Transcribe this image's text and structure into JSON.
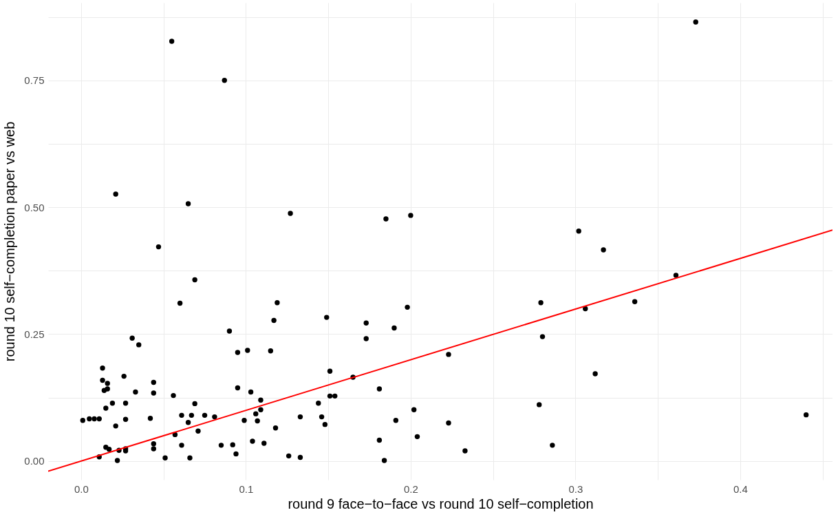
{
  "chart_data": {
    "type": "scatter",
    "xlabel": "round 9 face−to−face vs round 10 self−completion",
    "ylabel": "round 10 self−completion paper vs web",
    "xlim": [
      -0.02,
      0.456
    ],
    "ylim": [
      -0.037,
      0.903
    ],
    "xticks": [
      {
        "value": 0,
        "label": "0.0"
      },
      {
        "value": 0.05,
        "label": null
      },
      {
        "value": 0.1,
        "label": "0.1"
      },
      {
        "value": 0.15,
        "label": null
      },
      {
        "value": 0.2,
        "label": "0.2"
      },
      {
        "value": 0.25,
        "label": null
      },
      {
        "value": 0.3,
        "label": "0.3"
      },
      {
        "value": 0.35,
        "label": null
      },
      {
        "value": 0.4,
        "label": "0.4"
      },
      {
        "value": 0.45,
        "label": null
      }
    ],
    "yticks": [
      {
        "value": 0,
        "label": "0.00"
      },
      {
        "value": 0.125,
        "label": null
      },
      {
        "value": 0.25,
        "label": "0.25"
      },
      {
        "value": 0.375,
        "label": null
      },
      {
        "value": 0.5,
        "label": "0.50"
      },
      {
        "value": 0.625,
        "label": null
      },
      {
        "value": 0.75,
        "label": "0.75"
      },
      {
        "value": 0.875,
        "label": null
      }
    ],
    "grid": true,
    "series": [
      {
        "marker": "circle",
        "color": "#000000",
        "x": [
          0.001,
          0.005,
          0.008,
          0.011,
          0.011,
          0.013,
          0.013,
          0.014,
          0.015,
          0.015,
          0.016,
          0.016,
          0.017,
          0.019,
          0.021,
          0.021,
          0.022,
          0.023,
          0.026,
          0.027,
          0.027,
          0.027,
          0.027,
          0.031,
          0.033,
          0.035,
          0.042,
          0.044,
          0.044,
          0.044,
          0.044,
          0.047,
          0.051,
          0.055,
          0.056,
          0.057,
          0.06,
          0.061,
          0.061,
          0.065,
          0.065,
          0.066,
          0.067,
          0.069,
          0.069,
          0.071,
          0.075,
          0.081,
          0.085,
          0.087,
          0.09,
          0.092,
          0.094,
          0.095,
          0.095,
          0.099,
          0.101,
          0.103,
          0.104,
          0.106,
          0.107,
          0.109,
          0.109,
          0.111,
          0.115,
          0.117,
          0.118,
          0.119,
          0.126,
          0.127,
          0.133,
          0.133,
          0.144,
          0.146,
          0.148,
          0.149,
          0.151,
          0.151,
          0.154,
          0.165,
          0.173,
          0.173,
          0.181,
          0.181,
          0.184,
          0.185,
          0.19,
          0.191,
          0.198,
          0.2,
          0.202,
          0.204,
          0.223,
          0.223,
          0.233,
          0.278,
          0.279,
          0.28,
          0.286,
          0.302,
          0.306,
          0.312,
          0.317,
          0.336,
          0.361,
          0.373,
          0.44
        ],
        "values": [
          0.08,
          0.083,
          0.083,
          0.083,
          0.008,
          0.183,
          0.159,
          0.139,
          0.104,
          0.027,
          0.153,
          0.142,
          0.023,
          0.114,
          0.069,
          0.526,
          0.001,
          0.021,
          0.167,
          0.114,
          0.082,
          0.024,
          0.02,
          0.242,
          0.136,
          0.229,
          0.084,
          0.034,
          0.024,
          0.155,
          0.134,
          0.422,
          0.006,
          0.827,
          0.129,
          0.052,
          0.311,
          0.031,
          0.09,
          0.507,
          0.076,
          0.006,
          0.09,
          0.113,
          0.357,
          0.059,
          0.09,
          0.087,
          0.031,
          0.75,
          0.256,
          0.032,
          0.014,
          0.214,
          0.144,
          0.08,
          0.218,
          0.136,
          0.039,
          0.093,
          0.079,
          0.101,
          0.12,
          0.035,
          0.217,
          0.277,
          0.065,
          0.312,
          0.01,
          0.488,
          0.087,
          0.007,
          0.114,
          0.087,
          0.072,
          0.283,
          0.177,
          0.128,
          0.128,
          0.165,
          0.272,
          0.241,
          0.142,
          0.041,
          0.001,
          0.477,
          0.262,
          0.08,
          0.303,
          0.484,
          0.101,
          0.048,
          0.21,
          0.075,
          0.02,
          0.111,
          0.312,
          0.245,
          0.031,
          0.453,
          0.3,
          0.172,
          0.416,
          0.314,
          0.366,
          0.865,
          0.091
        ]
      },
      {
        "type": "line",
        "marker": "none",
        "color": "#ff0000",
        "x": [
          -0.02,
          0.456
        ],
        "values": [
          -0.02,
          0.455
        ]
      }
    ]
  }
}
